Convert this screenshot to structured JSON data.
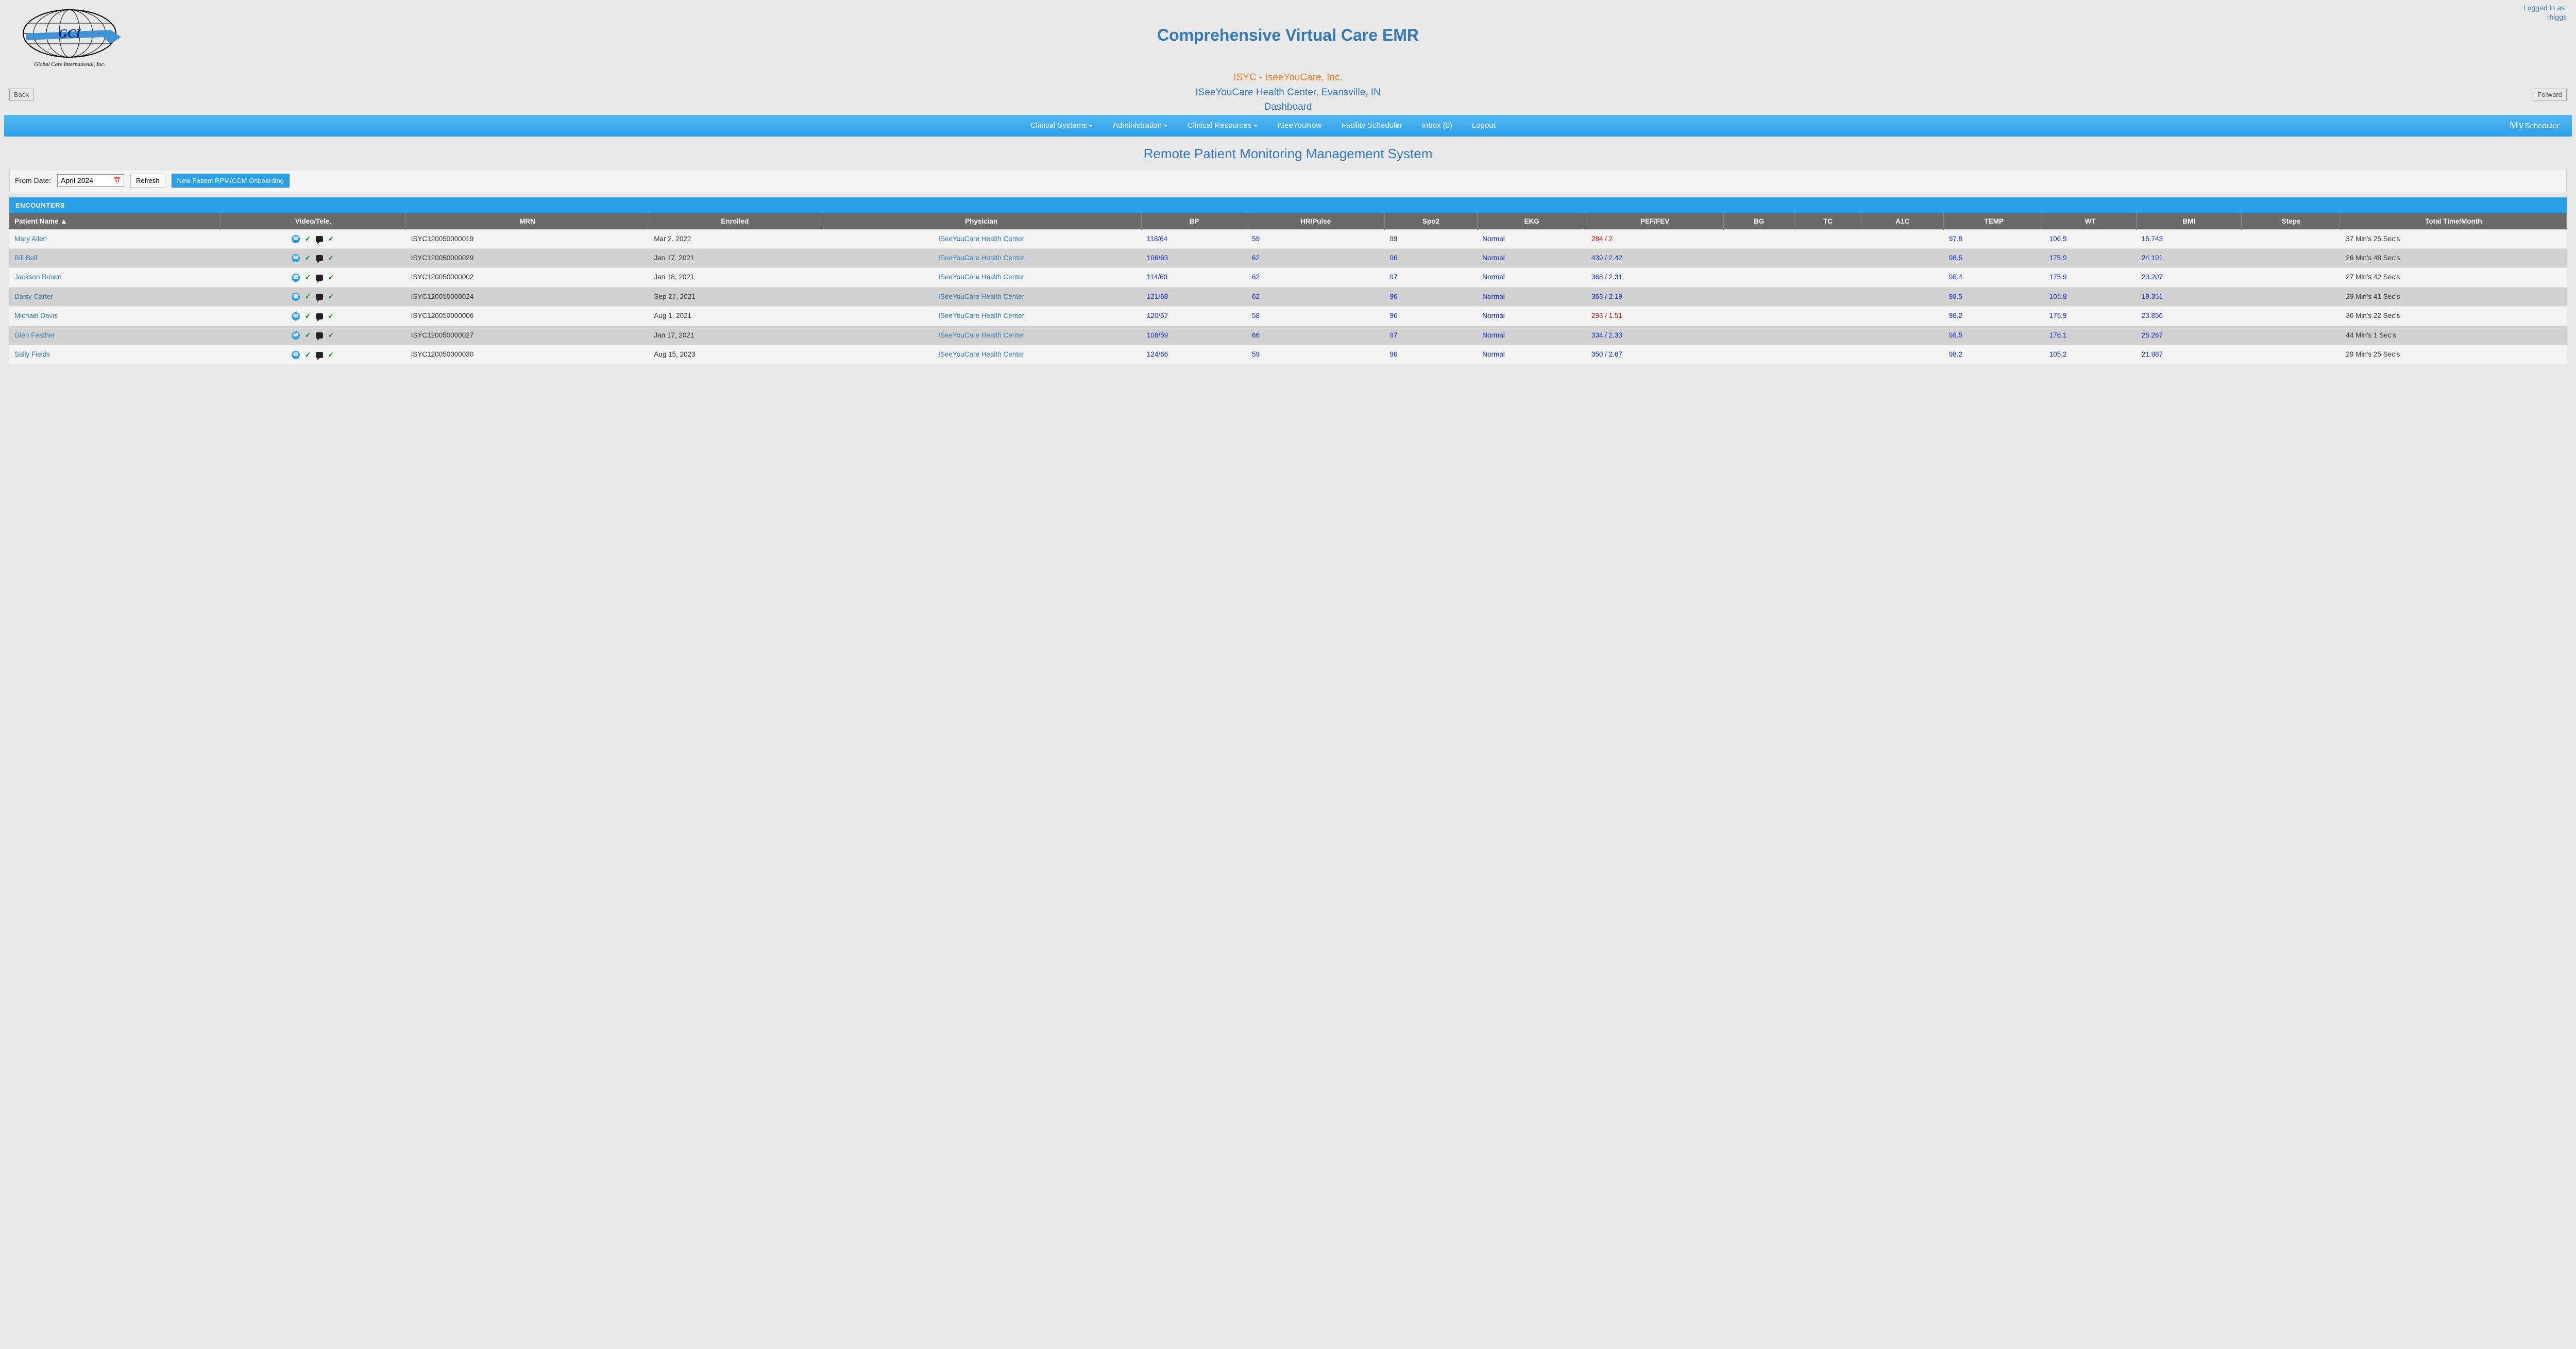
{
  "login": {
    "line1": "Logged in as:",
    "user": "rhiggs"
  },
  "header": {
    "title": "Comprehensive Virtual Care EMR",
    "org_name": "ISYC - IseeYouCare, Inc.",
    "org_location": "ISeeYouCare Health Center, Evansville, IN",
    "org_sub": "Dashboard",
    "back": "Back",
    "forward": "Forward",
    "logo_text": "GCI",
    "logo_sub": "Global Care International, Inc."
  },
  "nav": {
    "clinical_systems": "Clinical Systems",
    "administration": "Administration",
    "clinical_resources": "Clinical Resources",
    "iseeyounow": "ISeeYouNow",
    "facility_scheduler": "Facility Scheduler",
    "inbox": "Inbox  (0)",
    "logout": "Logout",
    "my": "My",
    "scheduler": "Scheduler"
  },
  "page": {
    "subtitle": "Remote Patient Monitoring Management System"
  },
  "toolbar": {
    "from_date_label": "From Date:",
    "from_date_value": "April 2024",
    "refresh": "Refresh",
    "onboard": "New Patient RPM/CCM Onboarding"
  },
  "section": {
    "encounters": "ENCOUNTERS"
  },
  "columns": {
    "patient": "Patient Name ▲",
    "video": "Video/Tele.",
    "mrn": "MRN",
    "enrolled": "Enrolled",
    "physician": "Physician",
    "bp": "BP",
    "hr": "HR/Pulse",
    "spo2": "Spo2",
    "ekg": "EKG",
    "pef": "PEF/FEV",
    "bg": "BG",
    "tc": "TC",
    "a1c": "A1C",
    "temp": "TEMP",
    "wt": "WT",
    "bmi": "BMI",
    "steps": "Steps",
    "total": "Total Time/Month"
  },
  "physician_name": "ISeeYouCare Health Center",
  "rows": [
    {
      "name": "Mary Allen",
      "mrn": "ISYC120050000019",
      "enrolled": "Mar 2, 2022",
      "bp": "118/64",
      "hr": "59",
      "spo2": "99",
      "spo2_blue": false,
      "ekg": "Normal",
      "pef": "284 / 2",
      "pef_red": true,
      "temp": "97.8",
      "wt": "106.9",
      "bmi": "16.743",
      "total": "37 Min's 25 Sec's"
    },
    {
      "name": "Bill Ball",
      "mrn": "ISYC120050000029",
      "enrolled": "Jan 17, 2021",
      "bp": "106/63",
      "hr": "62",
      "spo2": "96",
      "spo2_blue": true,
      "ekg": "Normal",
      "pef": "439 / 2.42",
      "pef_red": false,
      "temp": "98.5",
      "wt": "175.9",
      "bmi": "24.191",
      "total": "26 Min's 48 Sec's"
    },
    {
      "name": "Jackson Brown",
      "mrn": "ISYC120050000002",
      "enrolled": "Jan 18, 2021",
      "bp": "114/69",
      "hr": "62",
      "spo2": "97",
      "spo2_blue": true,
      "ekg": "Normal",
      "pef": "368 / 2.31",
      "pef_red": false,
      "temp": "98.4",
      "wt": "175.9",
      "bmi": "23.207",
      "total": "27 Min's 42 Sec's"
    },
    {
      "name": "Daisy Carter",
      "mrn": "ISYC120050000024",
      "enrolled": "Sep 27, 2021",
      "bp": "121/68",
      "hr": "62",
      "spo2": "96",
      "spo2_blue": true,
      "ekg": "Normal",
      "pef": "363 / 2.19",
      "pef_red": false,
      "temp": "98.5",
      "wt": "105.8",
      "bmi": "19.351",
      "total": "29 Min's 41 Sec's"
    },
    {
      "name": "Michael Davis",
      "mrn": "ISYC120050000006",
      "enrolled": "Aug 1, 2021",
      "bp": "120/67",
      "hr": "58",
      "spo2": "96",
      "spo2_blue": true,
      "ekg": "Normal",
      "pef": "293 / 1.51",
      "pef_red": true,
      "temp": "98.2",
      "wt": "175.9",
      "bmi": "23.856",
      "total": "36 Min's 22 Sec's"
    },
    {
      "name": "Glen Feather",
      "mrn": "ISYC120050000027",
      "enrolled": "Jan 17, 2021",
      "bp": "108/59",
      "hr": "66",
      "spo2": "97",
      "spo2_blue": true,
      "ekg": "Normal",
      "pef": "334 / 2.33",
      "pef_red": false,
      "temp": "98.5",
      "wt": "176.1",
      "bmi": "25.267",
      "total": "44 Min's 1 Sec's"
    },
    {
      "name": "Sally Fields",
      "mrn": "ISYC120050000030",
      "enrolled": "Aug 15, 2023",
      "bp": "124/66",
      "hr": "59",
      "spo2": "96",
      "spo2_blue": true,
      "ekg": "Normal",
      "pef": "350 / 2.67",
      "pef_red": false,
      "temp": "98.2",
      "wt": "105.2",
      "bmi": "21.987",
      "total": "29 Min's 25 Sec's"
    }
  ]
}
